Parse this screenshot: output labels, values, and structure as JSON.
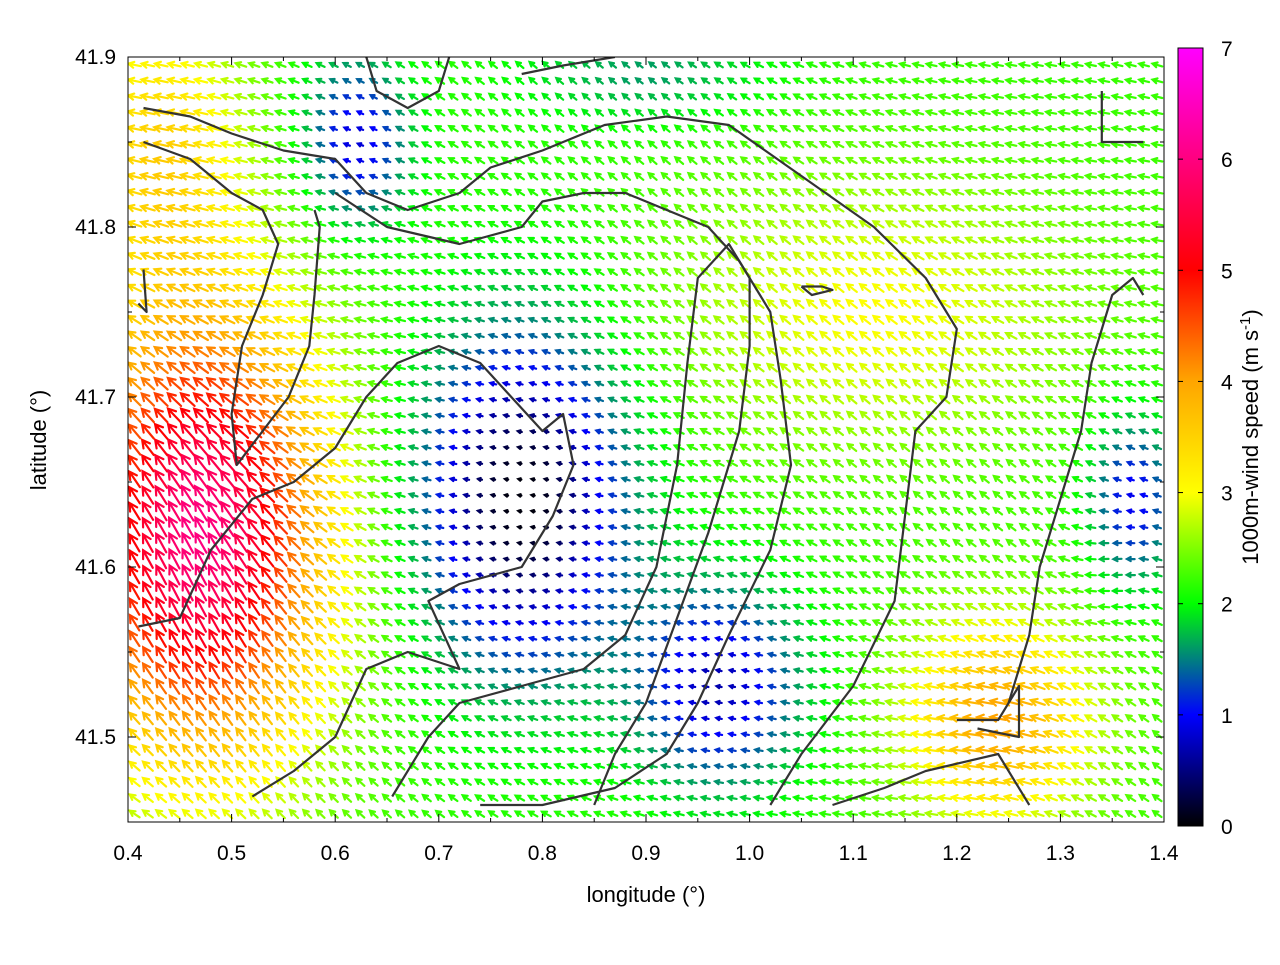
{
  "chart_data": {
    "type": "quiver",
    "xlabel": "longitude (°)",
    "ylabel": "latitude (°)",
    "xlim": [
      0.4,
      1.4
    ],
    "ylim": [
      41.45,
      41.9
    ],
    "xticks": [
      "0.4",
      "0.5",
      "0.6",
      "0.7",
      "0.8",
      "0.9",
      "1.0",
      "1.1",
      "1.2",
      "1.3",
      "1.4"
    ],
    "yticks": [
      "41.5",
      "41.6",
      "41.7",
      "41.8",
      "41.9"
    ],
    "grid": false,
    "colorbar": {
      "label": "1000m-wind speed (m s",
      "label_sup": "-1",
      "label_tail": ")",
      "min": 0,
      "max": 7,
      "ticks": [
        "0",
        "1",
        "2",
        "3",
        "4",
        "5",
        "6",
        "7"
      ],
      "colors": [
        "#000000",
        "#0000ff",
        "#00ff00",
        "#ffff00",
        "#ffa500",
        "#ff0000",
        "#ff00ff"
      ]
    },
    "contours": [
      [
        [
          0.415,
          41.85
        ],
        [
          0.46,
          41.84
        ],
        [
          0.5,
          41.82
        ],
        [
          0.53,
          41.81
        ],
        [
          0.545,
          41.79
        ],
        [
          0.53,
          41.76
        ],
        [
          0.51,
          41.73
        ],
        [
          0.5,
          41.69
        ],
        [
          0.505,
          41.66
        ],
        [
          0.53,
          41.68
        ],
        [
          0.555,
          41.7
        ],
        [
          0.575,
          41.73
        ],
        [
          0.58,
          41.76
        ],
        [
          0.585,
          41.8
        ],
        [
          0.58,
          41.81
        ]
      ],
      [
        [
          0.415,
          41.87
        ],
        [
          0.46,
          41.865
        ],
        [
          0.5,
          41.855
        ],
        [
          0.55,
          41.845
        ],
        [
          0.6,
          41.84
        ],
        [
          0.63,
          41.82
        ],
        [
          0.67,
          41.81
        ],
        [
          0.72,
          41.82
        ],
        [
          0.75,
          41.835
        ],
        [
          0.8,
          41.845
        ],
        [
          0.86,
          41.86
        ],
        [
          0.92,
          41.865
        ],
        [
          0.98,
          41.86
        ],
        [
          1.05,
          41.83
        ],
        [
          1.12,
          41.8
        ],
        [
          1.17,
          41.77
        ],
        [
          1.2,
          41.74
        ],
        [
          1.19,
          41.7
        ],
        [
          1.16,
          41.68
        ],
        [
          1.15,
          41.63
        ],
        [
          1.14,
          41.58
        ],
        [
          1.1,
          41.53
        ],
        [
          1.05,
          41.49
        ],
        [
          1.02,
          41.46
        ]
      ],
      [
        [
          0.41,
          41.565
        ],
        [
          0.45,
          41.57
        ],
        [
          0.48,
          41.61
        ],
        [
          0.52,
          41.64
        ],
        [
          0.56,
          41.65
        ],
        [
          0.6,
          41.67
        ],
        [
          0.63,
          41.7
        ],
        [
          0.66,
          41.72
        ],
        [
          0.7,
          41.73
        ],
        [
          0.74,
          41.72
        ],
        [
          0.77,
          41.7
        ],
        [
          0.8,
          41.68
        ],
        [
          0.82,
          41.69
        ],
        [
          0.83,
          41.66
        ],
        [
          0.81,
          41.63
        ],
        [
          0.78,
          41.6
        ],
        [
          0.72,
          41.59
        ],
        [
          0.69,
          41.58
        ],
        [
          0.72,
          41.54
        ],
        [
          0.67,
          41.55
        ],
        [
          0.63,
          41.54
        ],
        [
          0.6,
          41.5
        ],
        [
          0.56,
          41.48
        ],
        [
          0.52,
          41.465
        ]
      ],
      [
        [
          0.6,
          41.82
        ],
        [
          0.65,
          41.8
        ],
        [
          0.72,
          41.79
        ],
        [
          0.78,
          41.8
        ],
        [
          0.8,
          41.815
        ],
        [
          0.84,
          41.82
        ],
        [
          0.88,
          41.82
        ],
        [
          0.92,
          41.81
        ],
        [
          0.96,
          41.8
        ],
        [
          0.99,
          41.78
        ],
        [
          1.02,
          41.75
        ],
        [
          1.03,
          41.71
        ],
        [
          1.04,
          41.66
        ],
        [
          1.02,
          41.61
        ],
        [
          0.98,
          41.56
        ],
        [
          0.95,
          41.52
        ],
        [
          0.92,
          41.49
        ],
        [
          0.87,
          41.47
        ],
        [
          0.8,
          41.46
        ],
        [
          0.74,
          41.46
        ]
      ],
      [
        [
          0.655,
          41.465
        ],
        [
          0.69,
          41.5
        ],
        [
          0.72,
          41.52
        ],
        [
          0.78,
          41.53
        ],
        [
          0.84,
          41.54
        ],
        [
          0.88,
          41.56
        ],
        [
          0.91,
          41.6
        ],
        [
          0.93,
          41.66
        ],
        [
          0.94,
          41.72
        ],
        [
          0.95,
          41.77
        ],
        [
          0.98,
          41.79
        ],
        [
          1.0,
          41.77
        ],
        [
          1.0,
          41.73
        ],
        [
          0.99,
          41.68
        ],
        [
          0.96,
          41.62
        ],
        [
          0.93,
          41.57
        ],
        [
          0.9,
          41.52
        ],
        [
          0.87,
          41.49
        ],
        [
          0.85,
          41.46
        ]
      ],
      [
        [
          1.08,
          41.46
        ],
        [
          1.13,
          41.47
        ],
        [
          1.17,
          41.48
        ],
        [
          1.24,
          41.49
        ],
        [
          1.27,
          41.46
        ]
      ],
      [
        [
          1.2,
          41.51
        ],
        [
          1.24,
          41.51
        ],
        [
          1.26,
          41.53
        ],
        [
          1.26,
          41.5
        ],
        [
          1.22,
          41.505
        ]
      ],
      [
        [
          1.25,
          41.52
        ],
        [
          1.27,
          41.56
        ],
        [
          1.28,
          41.6
        ],
        [
          1.3,
          41.64
        ],
        [
          1.32,
          41.68
        ],
        [
          1.33,
          41.72
        ],
        [
          1.35,
          41.76
        ],
        [
          1.37,
          41.77
        ],
        [
          1.38,
          41.76
        ]
      ],
      [
        [
          1.34,
          41.88
        ],
        [
          1.34,
          41.85
        ],
        [
          1.38,
          41.85
        ]
      ],
      [
        [
          1.05,
          41.765
        ],
        [
          1.07,
          41.765
        ],
        [
          1.08,
          41.763
        ],
        [
          1.06,
          41.76
        ],
        [
          1.05,
          41.765
        ]
      ],
      [
        [
          0.415,
          41.775
        ],
        [
          0.418,
          41.75
        ],
        [
          0.41,
          41.755
        ]
      ],
      [
        [
          0.63,
          41.9
        ],
        [
          0.64,
          41.88
        ],
        [
          0.67,
          41.87
        ],
        [
          0.7,
          41.88
        ],
        [
          0.71,
          41.9
        ]
      ],
      [
        [
          0.78,
          41.89
        ],
        [
          0.82,
          41.895
        ],
        [
          0.87,
          41.9
        ]
      ]
    ]
  }
}
